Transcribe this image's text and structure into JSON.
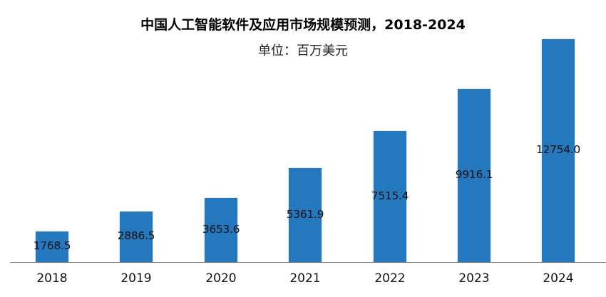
{
  "chart_data": {
    "type": "bar",
    "title": "中国人工智能软件及应用市场规模预测，2018-2024",
    "subtitle": "单位：百万美元",
    "xlabel": "",
    "ylabel": "",
    "categories": [
      "2018",
      "2019",
      "2020",
      "2021",
      "2022",
      "2023",
      "2024"
    ],
    "values": [
      1768.5,
      2886.5,
      3653.6,
      5361.9,
      7515.4,
      9916.1,
      12754.0
    ],
    "value_labels": [
      "1768.5",
      "2886.5",
      "3653.6",
      "5361.9",
      "7515.4",
      "9916.1",
      "12754.0"
    ],
    "ylim": [
      0,
      13000
    ],
    "grid": false,
    "legend": null,
    "bar_color": "#2478be"
  }
}
